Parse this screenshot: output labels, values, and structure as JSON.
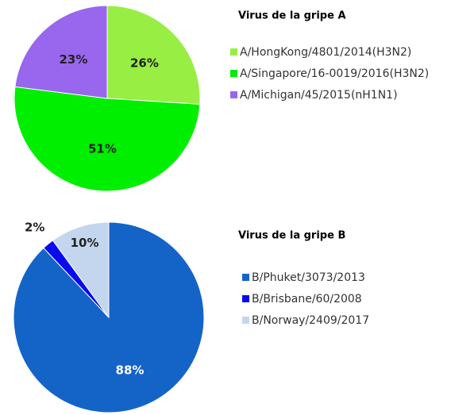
{
  "chart_data": [
    {
      "type": "pie",
      "title": "Virus de la gripe A",
      "categories": [
        "A/HongKong/4801/2014(H3N2)",
        "A/Singapore/16-0019/2016(H3N2)",
        "A/Michigan/45/2015(nH1N1)"
      ],
      "values": [
        26,
        51,
        23
      ],
      "value_labels": [
        "26%",
        "51%",
        "23%"
      ],
      "colors": [
        "#99ee44",
        "#00ee00",
        "#9966ee"
      ]
    },
    {
      "type": "pie",
      "title": "Virus de la gripe B",
      "categories": [
        "B/Phuket/3073/2013",
        "B/Brisbane/60/2008",
        "B/Norway/2409/2017"
      ],
      "values": [
        88,
        2,
        10
      ],
      "value_labels": [
        "88%",
        "2%",
        "10%"
      ],
      "colors": [
        "#1464c8",
        "#0a0aee",
        "#c4d6ee"
      ]
    }
  ]
}
